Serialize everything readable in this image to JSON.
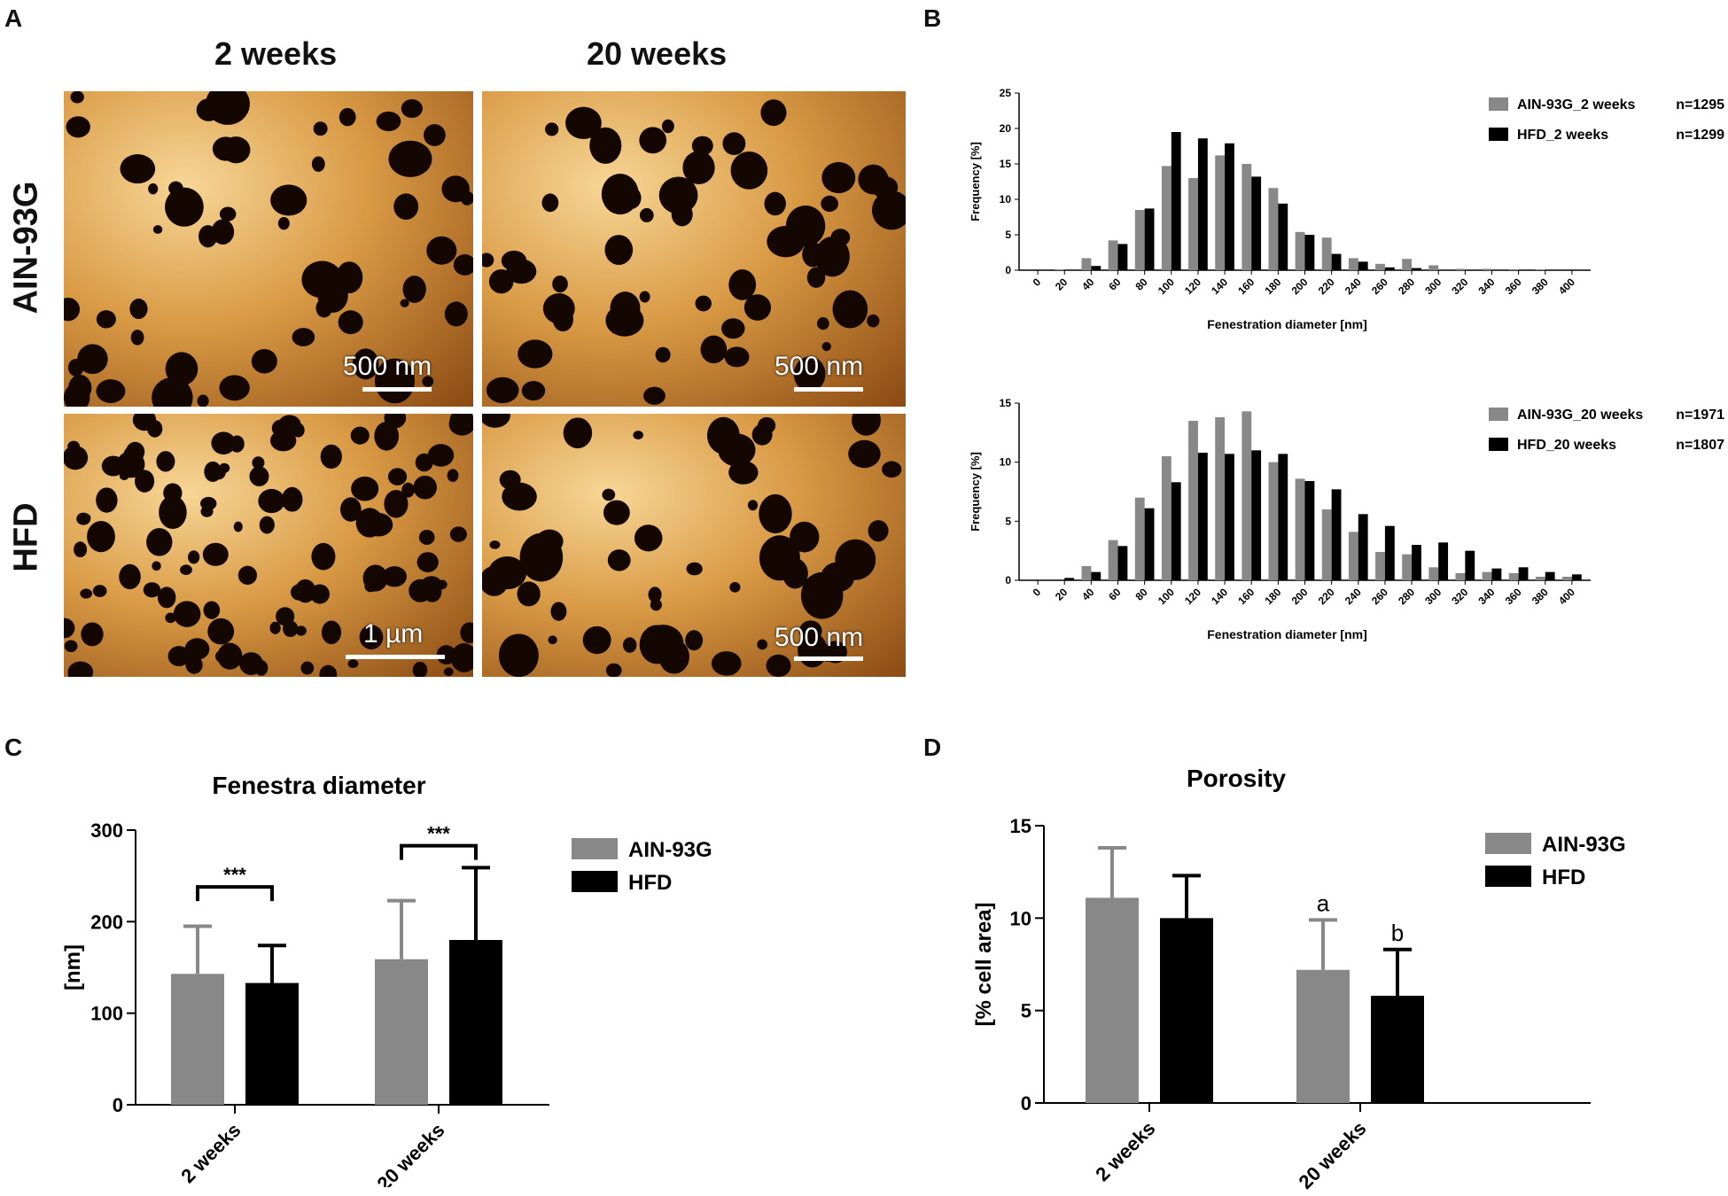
{
  "panels": {
    "a": "A",
    "b": "B",
    "c": "C",
    "d": "D"
  },
  "panel_a": {
    "col_headers": [
      "2 weeks",
      "20 weeks"
    ],
    "row_labels": [
      "AIN-93G",
      "HFD"
    ],
    "scalebars": [
      "500 nm",
      "500 nm",
      "1 µm",
      "500 nm"
    ]
  },
  "colors": {
    "ain": "#888888",
    "hfd": "#000000"
  },
  "chart_data": [
    {
      "id": "b_top",
      "type": "bar",
      "xlabel": "Fenestration diameter [nm]",
      "ylabel": "Frequency [%]",
      "ylim": [
        0,
        25
      ],
      "yticks": [
        0,
        5,
        10,
        15,
        20,
        25
      ],
      "categories": [
        "0",
        "20",
        "40",
        "60",
        "80",
        "100",
        "120",
        "140",
        "160",
        "180",
        "200",
        "220",
        "240",
        "260",
        "280",
        "300",
        "320",
        "340",
        "360",
        "380",
        "400"
      ],
      "series": [
        {
          "name": "AIN-93G_2 weeks",
          "n": "n=1295",
          "values": [
            0,
            0.1,
            1.7,
            4.2,
            8.5,
            14.7,
            13.0,
            16.2,
            15.0,
            11.6,
            5.4,
            4.6,
            1.7,
            0.9,
            1.6,
            0.7,
            0.2,
            0.2,
            0.1,
            0.1,
            0
          ]
        },
        {
          "name": "HFD_2 weeks",
          "n": "n=1299",
          "values": [
            0,
            0,
            0.6,
            3.7,
            8.7,
            19.5,
            18.6,
            17.9,
            13.2,
            9.4,
            5.0,
            2.3,
            1.2,
            0.4,
            0.3,
            0,
            0,
            0,
            0,
            0,
            0
          ]
        }
      ]
    },
    {
      "id": "b_bottom",
      "type": "bar",
      "xlabel": "Fenestration diameter [nm]",
      "ylabel": "Frequency [%]",
      "ylim": [
        0,
        15
      ],
      "yticks": [
        0,
        5,
        10,
        15
      ],
      "categories": [
        "0",
        "20",
        "40",
        "60",
        "80",
        "100",
        "120",
        "140",
        "160",
        "180",
        "200",
        "220",
        "240",
        "260",
        "280",
        "300",
        "320",
        "340",
        "360",
        "380",
        "400"
      ],
      "series": [
        {
          "name": "AIN-93G_20 weeks",
          "n": "n=1971",
          "values": [
            0,
            0,
            1.2,
            3.4,
            7.0,
            10.5,
            13.5,
            13.8,
            14.3,
            10.0,
            8.6,
            6.0,
            4.1,
            2.4,
            2.2,
            1.1,
            0.6,
            0.7,
            0.6,
            0.3,
            0.3
          ]
        },
        {
          "name": "HFD_20 weeks",
          "n": "n=1807",
          "values": [
            0,
            0.2,
            0.7,
            2.9,
            6.1,
            8.3,
            10.8,
            10.7,
            11.0,
            10.7,
            8.4,
            7.7,
            5.6,
            4.6,
            3.0,
            3.2,
            2.5,
            1.0,
            1.1,
            0.7,
            0.5
          ]
        }
      ]
    },
    {
      "id": "c",
      "type": "bar",
      "title": "Fenestra diameter",
      "ylabel": "[nm]",
      "ylim": [
        0,
        300
      ],
      "yticks": [
        0,
        100,
        200,
        300
      ],
      "categories": [
        "2 weeks",
        "20 weeks"
      ],
      "series": [
        {
          "name": "AIN-93G",
          "values": [
            143,
            159
          ],
          "errors": [
            52,
            64
          ]
        },
        {
          "name": "HFD",
          "values": [
            133,
            180
          ],
          "errors": [
            41,
            79
          ]
        }
      ],
      "annotations": [
        "***",
        "***"
      ]
    },
    {
      "id": "d",
      "type": "bar",
      "title": "Porosity",
      "ylabel": "[% cell area]",
      "ylim": [
        0,
        15
      ],
      "yticks": [
        0,
        5,
        10,
        15
      ],
      "categories": [
        "2 weeks",
        "20 weeks"
      ],
      "series": [
        {
          "name": "AIN-93G",
          "values": [
            11.1,
            7.2
          ],
          "errors": [
            2.7,
            2.7
          ]
        },
        {
          "name": "HFD",
          "values": [
            10.0,
            5.8
          ],
          "errors": [
            2.3,
            2.5
          ]
        }
      ],
      "annotations": [
        "a",
        "b"
      ]
    }
  ]
}
